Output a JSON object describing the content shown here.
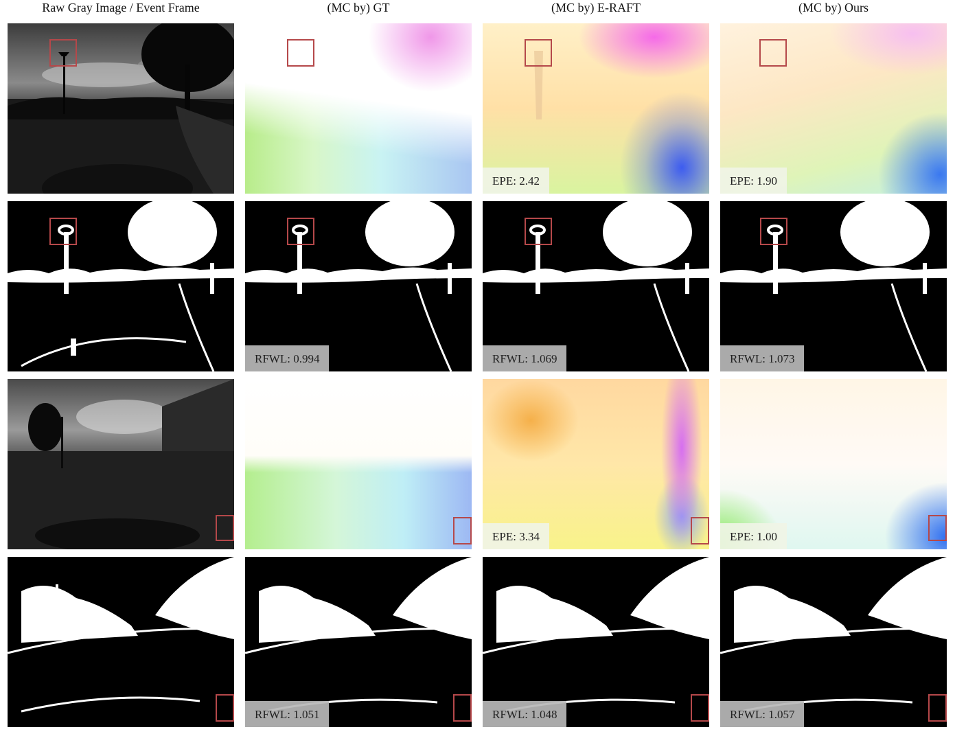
{
  "headers": [
    "Raw Gray Image / Event Frame",
    "(MC by) GT",
    "(MC by) E-RAFT",
    "(MC by) Ours"
  ],
  "scene1": {
    "flow_labels": {
      "eraft": "EPE: 2.42",
      "ours": "EPE: 1.90"
    },
    "event_labels": {
      "gt": "RFWL: 0.994",
      "eraft": "RFWL: 1.069",
      "ours": "RFWL: 1.073"
    }
  },
  "scene2": {
    "flow_labels": {
      "eraft": "EPE: 3.34",
      "ours": "EPE: 1.00"
    },
    "event_labels": {
      "gt": "RFWL: 1.051",
      "eraft": "RFWL: 1.048",
      "ours": "RFWL: 1.057"
    }
  },
  "colors": {
    "highlight_box": "#b5484a"
  }
}
